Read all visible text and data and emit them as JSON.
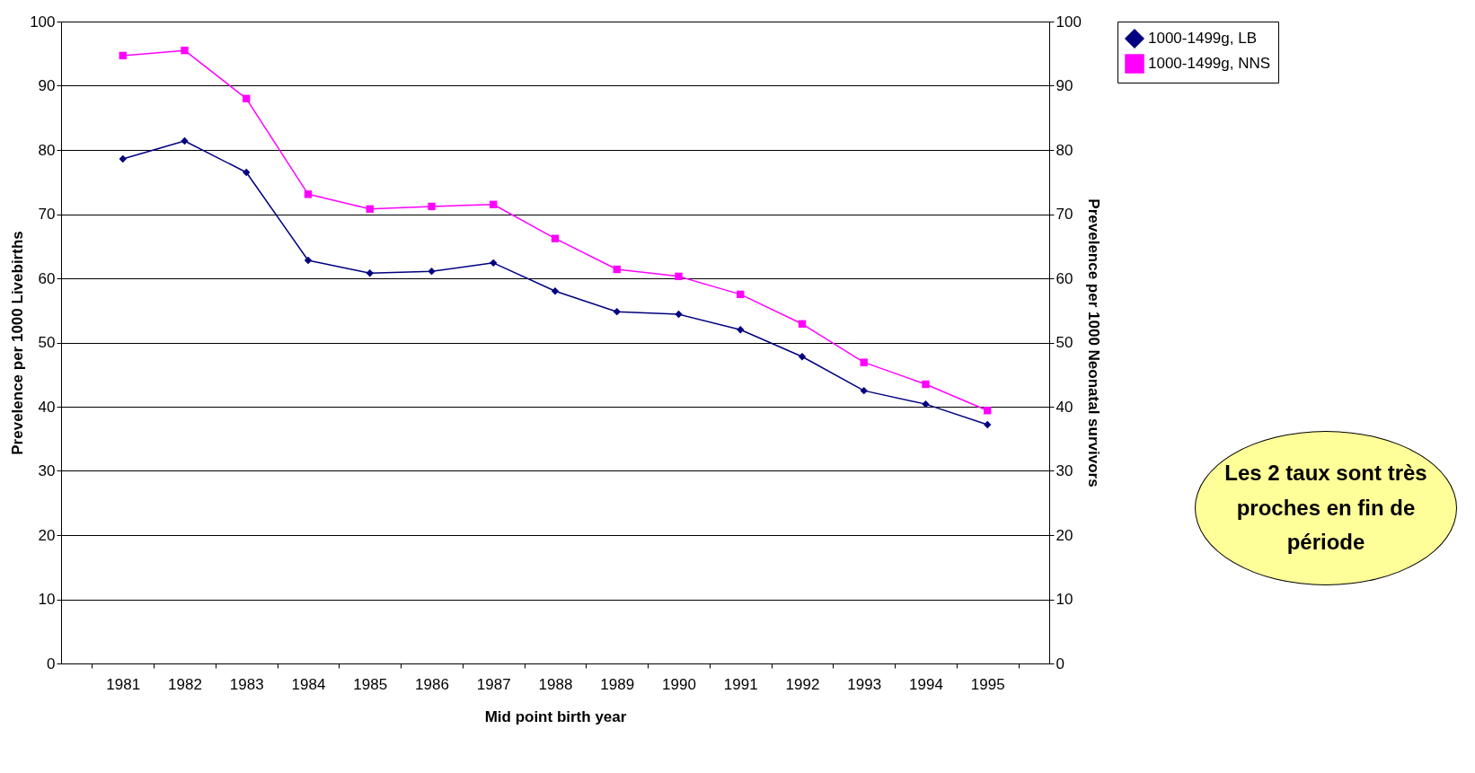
{
  "chart_data": {
    "type": "line",
    "xlabel": "Mid point birth year",
    "ylabel": "Prevelence per 1000 Livebirths",
    "y2label": "Prevelence per 1000 Neonatal survivors",
    "categories": [
      "1981",
      "1982",
      "1983",
      "1984",
      "1985",
      "1986",
      "1987",
      "1988",
      "1989",
      "1990",
      "1991",
      "1992",
      "1993",
      "1994",
      "1995"
    ],
    "series": [
      {
        "name": "1000-1499g, LB",
        "color": "#000080",
        "marker": "diamond",
        "values": [
          78.6,
          81.4,
          76.5,
          62.8,
          60.8,
          61.1,
          62.4,
          58.0,
          54.8,
          54.4,
          52.0,
          47.8,
          42.5,
          40.4,
          37.2
        ]
      },
      {
        "name": "1000-1499g, NNS",
        "color": "#ff00ff",
        "marker": "square",
        "axis": "y2",
        "values": [
          94.7,
          95.5,
          88.0,
          73.1,
          70.8,
          71.2,
          71.5,
          66.2,
          61.4,
          60.3,
          57.5,
          52.9,
          46.9,
          43.5,
          39.4
        ]
      }
    ],
    "ylim": [
      0,
      100
    ],
    "yticks": [
      0,
      10,
      20,
      30,
      40,
      50,
      60,
      70,
      80,
      90,
      100
    ],
    "y2lim": [
      0,
      100
    ],
    "y2ticks": [
      0,
      10,
      20,
      30,
      40,
      50,
      60,
      70,
      80,
      90,
      100
    ],
    "grid": "y",
    "legend": "right",
    "annotations": [
      "Les 2 taux sont très proches en fin de période"
    ]
  }
}
